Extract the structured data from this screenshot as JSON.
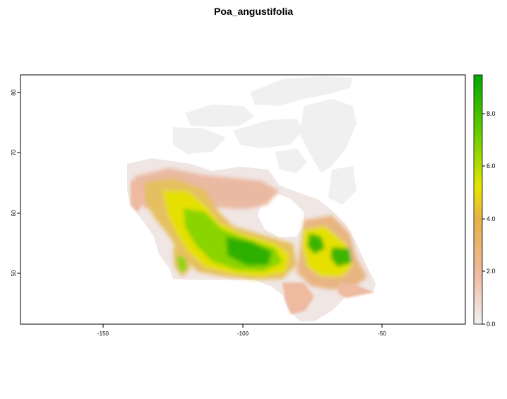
{
  "title": "Poa_angustifolia",
  "map": {
    "x_axis": {
      "ticks": [
        -150,
        -100,
        -50
      ],
      "labels": [
        "-150",
        "-100",
        "-50"
      ],
      "range": [
        -180,
        -21
      ]
    },
    "y_axis": {
      "ticks": [
        50,
        60,
        70,
        80
      ],
      "labels": [
        "50",
        "60",
        "70",
        "80"
      ],
      "range": [
        41.5,
        83.7
      ]
    },
    "region": "Canada"
  },
  "legend": {
    "ticks": [
      0,
      2,
      4,
      6,
      8
    ],
    "labels": [
      "0.0",
      "2.0",
      "4.0",
      "6.0",
      "8.0"
    ],
    "range": [
      0,
      9.5
    ],
    "colors": [
      "#f2f2f2",
      "#eebaa0",
      "#e8b048",
      "#e6e600",
      "#6fd000",
      "#00a600"
    ]
  }
}
